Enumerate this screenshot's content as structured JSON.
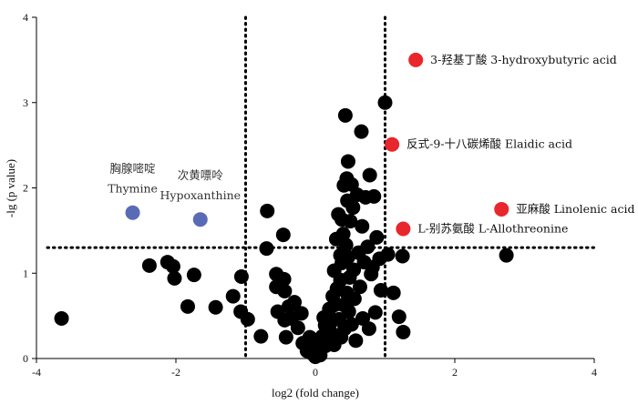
{
  "chart_data": {
    "type": "scatter",
    "title": "",
    "xlabel": "log2 (fold change)",
    "ylabel": "-lg (p value)",
    "xlim": [
      -4,
      4
    ],
    "ylim": [
      0,
      4
    ],
    "x_ticks": [
      "-4",
      "-2",
      "0",
      "2",
      "4"
    ],
    "y_ticks": [
      "0",
      "1",
      "2",
      "3",
      "4"
    ],
    "grid": false,
    "thresholds": {
      "x": [
        -1,
        1
      ],
      "y": 1.3
    },
    "colors": {
      "default": "#000000",
      "up": "#e8262c",
      "down": "#5a6bb5"
    },
    "highlighted": [
      {
        "x": 1.44,
        "y": 3.5,
        "group": "up",
        "label_lines": [
          "3-羟基丁酸 3-hydroxybutyric acid"
        ]
      },
      {
        "x": 1.1,
        "y": 2.51,
        "group": "up",
        "label_lines": [
          "反式-9-十八碳烯酸 Elaidic acid"
        ]
      },
      {
        "x": 2.67,
        "y": 1.75,
        "group": "up",
        "label_lines": [
          "亚麻酸 Linolenic acid"
        ]
      },
      {
        "x": 1.26,
        "y": 1.52,
        "group": "up",
        "label_lines": [
          "L-别苏氨酸 L-Allothreonine"
        ]
      },
      {
        "x": -2.62,
        "y": 1.71,
        "group": "down",
        "label_lines": [
          "胸腺嘧啶",
          "Thymine"
        ]
      },
      {
        "x": -1.65,
        "y": 1.63,
        "group": "down",
        "label_lines": [
          "次黄嘌呤",
          "Hypoxanthine"
        ]
      }
    ],
    "points": [
      [
        -3.64,
        0.47
      ],
      [
        -2.38,
        1.09
      ],
      [
        -2.12,
        1.13
      ],
      [
        -2.04,
        1.08
      ],
      [
        -2.02,
        0.94
      ],
      [
        -1.83,
        0.61
      ],
      [
        -1.74,
        0.98
      ],
      [
        -1.43,
        0.6
      ],
      [
        -1.18,
        0.73
      ],
      [
        -1.06,
        0.96
      ],
      [
        -1.07,
        0.55
      ],
      [
        -0.97,
        0.46
      ],
      [
        -0.78,
        0.26
      ],
      [
        -0.69,
        1.73
      ],
      [
        -0.7,
        1.29
      ],
      [
        -0.56,
        0.99
      ],
      [
        -0.56,
        0.84
      ],
      [
        -0.54,
        0.55
      ],
      [
        -0.46,
        1.45
      ],
      [
        -0.45,
        0.93
      ],
      [
        -0.44,
        0.79
      ],
      [
        -0.44,
        0.45
      ],
      [
        -0.42,
        0.25
      ],
      [
        -0.38,
        0.61
      ],
      [
        -0.34,
        0.47
      ],
      [
        -0.3,
        0.66
      ],
      [
        -0.25,
        0.36
      ],
      [
        -0.2,
        0.53
      ],
      [
        -0.18,
        0.18
      ],
      [
        -0.12,
        0.09
      ],
      [
        -0.08,
        0.25
      ],
      [
        -0.05,
        0.06
      ],
      [
        0.0,
        0.02
      ],
      [
        0.02,
        0.13
      ],
      [
        0.07,
        0.04
      ],
      [
        0.1,
        0.26
      ],
      [
        0.12,
        0.48
      ],
      [
        0.14,
        0.39
      ],
      [
        0.15,
        0.15
      ],
      [
        0.18,
        0.24
      ],
      [
        0.2,
        0.58
      ],
      [
        0.22,
        0.31
      ],
      [
        0.24,
        0.44
      ],
      [
        0.25,
        0.73
      ],
      [
        0.27,
        1.03
      ],
      [
        0.27,
        0.16
      ],
      [
        0.28,
        0.63
      ],
      [
        0.3,
        1.4
      ],
      [
        0.31,
        0.82
      ],
      [
        0.33,
        1.69
      ],
      [
        0.34,
        0.46
      ],
      [
        0.36,
        1.21
      ],
      [
        0.36,
        0.92
      ],
      [
        0.37,
        0.25
      ],
      [
        0.38,
        1.63
      ],
      [
        0.38,
        1.12
      ],
      [
        0.4,
        1.46
      ],
      [
        0.4,
        0.63
      ],
      [
        0.41,
        2.03
      ],
      [
        0.42,
        0.35
      ],
      [
        0.43,
        2.85
      ],
      [
        0.44,
        1.33
      ],
      [
        0.45,
        2.11
      ],
      [
        0.45,
        0.77
      ],
      [
        0.46,
        1.85
      ],
      [
        0.47,
        1.19
      ],
      [
        0.47,
        2.31
      ],
      [
        0.48,
        0.55
      ],
      [
        0.49,
        0.95
      ],
      [
        0.5,
        1.61
      ],
      [
        0.52,
        2.04
      ],
      [
        0.52,
        0.4
      ],
      [
        0.54,
        1.77
      ],
      [
        0.55,
        1.04
      ],
      [
        0.56,
        0.7
      ],
      [
        0.58,
        0.21
      ],
      [
        0.6,
        1.92
      ],
      [
        0.62,
        1.24
      ],
      [
        0.64,
        0.84
      ],
      [
        0.66,
        2.66
      ],
      [
        0.67,
        1.55
      ],
      [
        0.68,
        0.47
      ],
      [
        0.7,
        1.13
      ],
      [
        0.72,
        1.89
      ],
      [
        0.75,
        1.31
      ],
      [
        0.77,
        0.35
      ],
      [
        0.78,
        2.15
      ],
      [
        0.8,
        0.99
      ],
      [
        0.82,
        1.07
      ],
      [
        0.84,
        1.9
      ],
      [
        0.86,
        0.54
      ],
      [
        0.88,
        1.42
      ],
      [
        0.92,
        1.17
      ],
      [
        0.94,
        0.8
      ],
      [
        1.0,
        3.0
      ],
      [
        1.04,
        1.22
      ],
      [
        1.12,
        0.77
      ],
      [
        1.2,
        0.49
      ],
      [
        1.25,
        1.2
      ],
      [
        1.26,
        0.31
      ],
      [
        2.74,
        1.21
      ]
    ]
  }
}
